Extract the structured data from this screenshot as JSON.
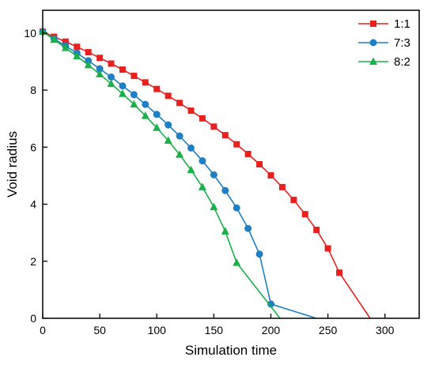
{
  "chart_data": {
    "type": "line",
    "title": "",
    "xlabel": "Simulation time",
    "ylabel": "Void radius",
    "xlim": [
      0,
      330
    ],
    "ylim": [
      0,
      10.8
    ],
    "xticks": [
      0,
      50,
      100,
      150,
      200,
      250,
      300
    ],
    "yticks": [
      0,
      2,
      4,
      6,
      8,
      10
    ],
    "grid": false,
    "legend_position": "top-right",
    "series": [
      {
        "name": "1:1",
        "color": "#e8211f",
        "marker": "square",
        "end_time": 287,
        "points": [
          [
            0,
            10.05
          ],
          [
            10,
            9.87
          ],
          [
            20,
            9.7
          ],
          [
            30,
            9.52
          ],
          [
            40,
            9.33
          ],
          [
            50,
            9.13
          ],
          [
            60,
            8.93
          ],
          [
            70,
            8.72
          ],
          [
            80,
            8.5
          ],
          [
            90,
            8.27
          ],
          [
            100,
            8.04
          ],
          [
            110,
            7.8
          ],
          [
            120,
            7.55
          ],
          [
            130,
            7.28
          ],
          [
            140,
            7.01
          ],
          [
            150,
            6.72
          ],
          [
            160,
            6.42
          ],
          [
            170,
            6.1
          ],
          [
            180,
            5.76
          ],
          [
            190,
            5.4
          ],
          [
            200,
            5.01
          ],
          [
            210,
            4.6
          ],
          [
            220,
            4.15
          ],
          [
            230,
            3.65
          ],
          [
            240,
            3.1
          ],
          [
            250,
            2.45
          ],
          [
            260,
            1.6
          ]
        ]
      },
      {
        "name": "7:3",
        "color": "#1f7fc4",
        "marker": "circle",
        "end_time": 240,
        "points": [
          [
            0,
            10.05
          ],
          [
            10,
            9.8
          ],
          [
            20,
            9.55
          ],
          [
            30,
            9.3
          ],
          [
            40,
            9.03
          ],
          [
            50,
            8.75
          ],
          [
            60,
            8.46
          ],
          [
            70,
            8.15
          ],
          [
            80,
            7.84
          ],
          [
            90,
            7.5
          ],
          [
            100,
            7.15
          ],
          [
            110,
            6.78
          ],
          [
            120,
            6.39
          ],
          [
            130,
            5.97
          ],
          [
            140,
            5.52
          ],
          [
            150,
            5.03
          ],
          [
            160,
            4.48
          ],
          [
            170,
            3.87
          ],
          [
            180,
            3.15
          ],
          [
            190,
            2.25
          ],
          [
            200,
            0.5
          ]
        ]
      },
      {
        "name": "8:2",
        "color": "#1bb04a",
        "marker": "triangle",
        "end_time": 208,
        "points": [
          [
            0,
            10.05
          ],
          [
            10,
            9.77
          ],
          [
            20,
            9.48
          ],
          [
            30,
            9.19
          ],
          [
            40,
            8.88
          ],
          [
            50,
            8.56
          ],
          [
            60,
            8.22
          ],
          [
            70,
            7.87
          ],
          [
            80,
            7.5
          ],
          [
            90,
            7.1
          ],
          [
            100,
            6.68
          ],
          [
            110,
            6.23
          ],
          [
            120,
            5.74
          ],
          [
            130,
            5.2
          ],
          [
            140,
            4.6
          ],
          [
            150,
            3.9
          ],
          [
            160,
            3.05
          ],
          [
            170,
            1.95
          ]
        ]
      }
    ]
  }
}
